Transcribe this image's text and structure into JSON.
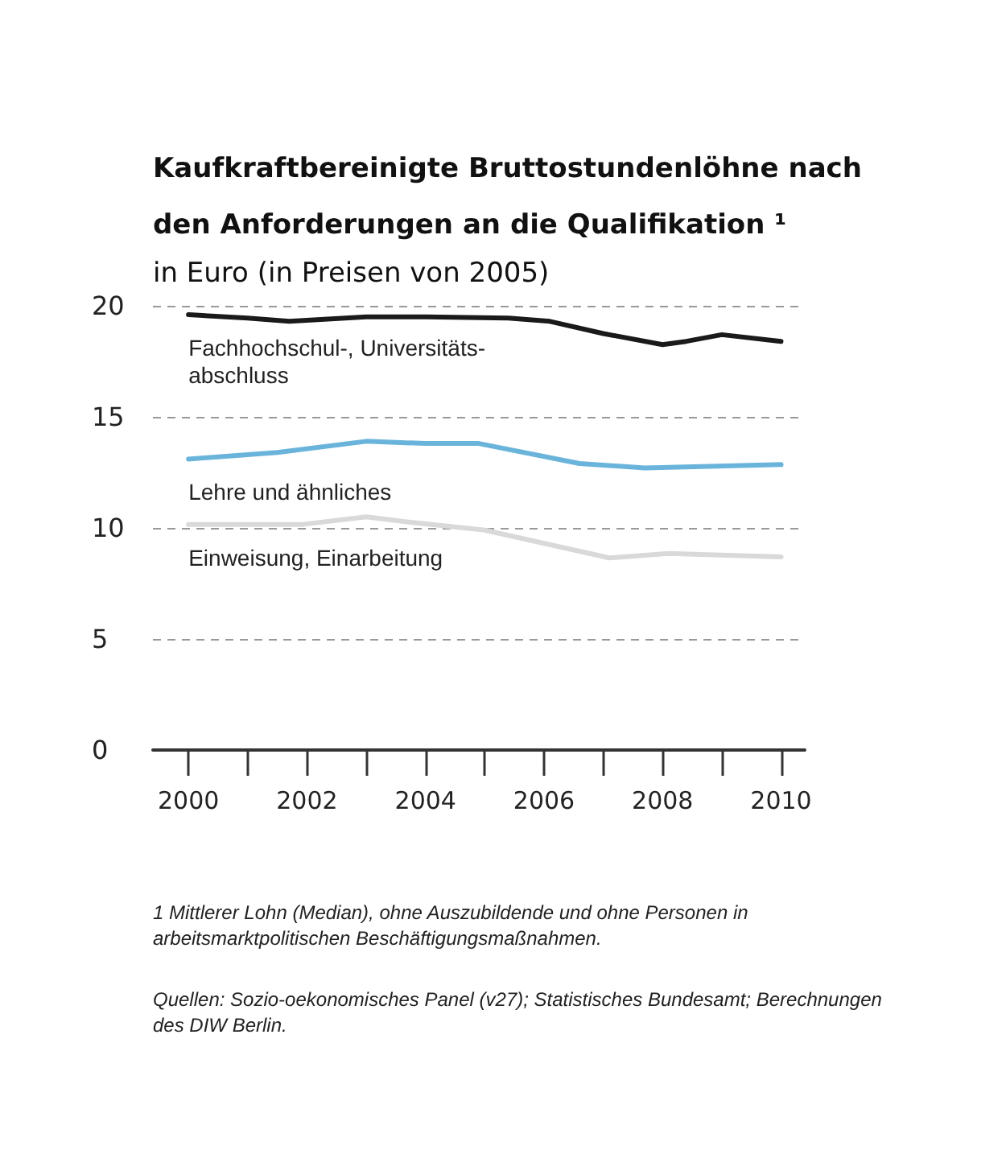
{
  "chart_data": {
    "type": "line",
    "title": "Kaufkraftbereinigte Bruttostundenlöhne nach den Anforderungen an die Qualifikation ¹",
    "subtitle": "in Euro (in Preisen von 2005)",
    "series": [
      {
        "name": "Fachhochschul-, Universitäts-\nabschluss",
        "color": "#1a1a1a",
        "x": [
          2000,
          2001,
          2001.7,
          2003,
          2004,
          2005.4,
          2006.1,
          2007,
          2008,
          2008.4,
          2009,
          2010
        ],
        "values": [
          19.6,
          19.45,
          19.3,
          19.5,
          19.5,
          19.45,
          19.3,
          18.75,
          18.25,
          18.4,
          18.7,
          18.4
        ]
      },
      {
        "name": "Lehre und ähnliches",
        "color": "#6ab4dc",
        "x": [
          2000,
          2001.5,
          2003,
          2004,
          2004.9,
          2006.6,
          2007.7,
          2010
        ],
        "values": [
          13.1,
          13.4,
          13.9,
          13.8,
          13.8,
          12.9,
          12.7,
          12.85
        ]
      },
      {
        "name": "Einweisung, Einarbeitung",
        "color": "#d9d9d9",
        "x": [
          2000,
          2001.9,
          2003,
          2003.75,
          2005,
          2007.1,
          2008.1,
          2010
        ],
        "values": [
          10.15,
          10.15,
          10.5,
          10.25,
          9.9,
          8.65,
          8.85,
          8.7
        ]
      }
    ],
    "xlim": [
      1999.4,
      2010.4
    ],
    "xticks": [
      2000,
      {
        "value": 2001,
        "label": null
      },
      2002,
      {
        "value": 2003,
        "label": null
      },
      2004,
      {
        "value": 2005,
        "label": null
      },
      2006,
      {
        "value": 2007,
        "label": null
      },
      2008,
      {
        "value": 2009,
        "label": null
      },
      2010
    ],
    "ylim": [
      0,
      20
    ],
    "yticks": [
      0,
      5,
      10,
      15,
      20
    ],
    "grid": "y",
    "legend": false,
    "marker": "none",
    "line_style": "solid",
    "annotations": [
      "1 Mittlerer Lohn (Median), ohne Auszubildende und ohne Personen in arbeitsmarktpolitischen Beschäftigungsmaßnahmen.",
      "Quellen: Sozio-oekonomisches Panel (v27); Statistisches Bundesamt; Berechnungen des DIW Berlin."
    ]
  }
}
